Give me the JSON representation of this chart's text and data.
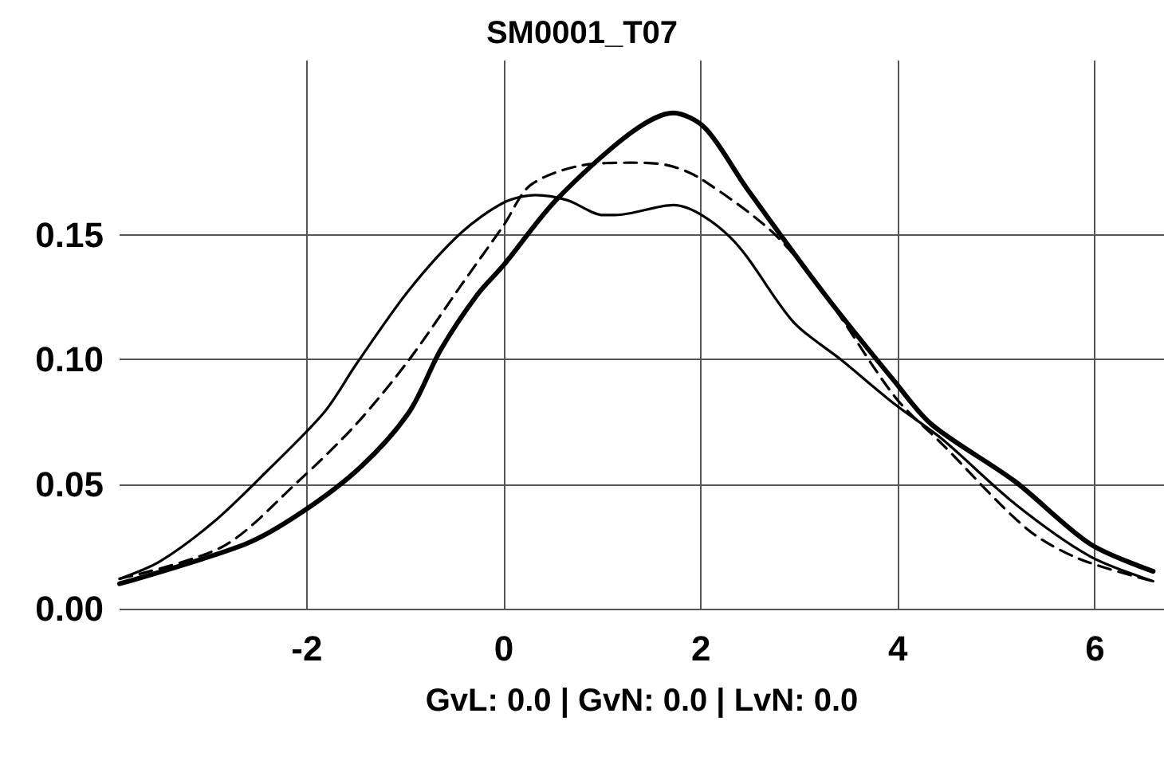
{
  "chart_data": {
    "type": "line",
    "title": "SM0001_T07",
    "xlabel": "GvL: 0.0 | GvN: 0.0 | LvN: 0.0",
    "xlim": [
      -3.9,
      6.7
    ],
    "xticks": [
      -2,
      0,
      2,
      4,
      6
    ],
    "ylim": [
      0,
      0.22
    ],
    "yticks": [
      {
        "value": 0,
        "label": "0.00"
      },
      0.05,
      {
        "value": 0.1,
        "label": "0.10"
      },
      0.15
    ],
    "grid": true,
    "marker": "none",
    "series": [
      {
        "color": "#000000",
        "line_style": "solid",
        "x": [
          -3.9,
          -3.49,
          -2.94,
          -2.41,
          -1.82,
          -1.5,
          -0.96,
          -0.43,
          0,
          0.32,
          0.64,
          1.01,
          1.13,
          1.72,
          2.3,
          2.94,
          3.42,
          3.97,
          4.45,
          5.19,
          5.95,
          6.59
        ],
        "values": [
          0.012,
          0.019,
          0.035,
          0.055,
          0.079,
          0.098,
          0.128,
          0.151,
          0.163,
          0.166,
          0.164,
          0.158,
          0.158,
          0.162,
          0.149,
          0.115,
          0.1,
          0.082,
          0.068,
          0.042,
          0.021,
          0.011
        ]
      },
      {
        "color": "#000000",
        "line_style": "dashed",
        "x": [
          -3.9,
          -2.85,
          -2.09,
          -1.5,
          -0.96,
          -0.43,
          0,
          0.27,
          0.8,
          1.29,
          1.66,
          1.98,
          2.73,
          3.26,
          3.97,
          4.45,
          5.31,
          5.84,
          6.59
        ],
        "values": [
          0.012,
          0.025,
          0.051,
          0.074,
          0.1,
          0.13,
          0.154,
          0.17,
          0.178,
          0.179,
          0.178,
          0.173,
          0.151,
          0.126,
          0.085,
          0.066,
          0.032,
          0.02,
          0.011
        ]
      },
      {
        "color": "#000000",
        "line_style": "solid",
        "x": [
          -3.9,
          -2.62,
          -2.04,
          -1.45,
          -0.96,
          -0.64,
          -0.27,
          0,
          0.53,
          1.29,
          1.72,
          2.04,
          2.46,
          3.26,
          3.97,
          4.34,
          5.19,
          5.95,
          6.59
        ],
        "values": [
          0.01,
          0.026,
          0.039,
          0.057,
          0.079,
          0.104,
          0.126,
          0.138,
          0.164,
          0.191,
          0.199,
          0.193,
          0.169,
          0.126,
          0.091,
          0.074,
          0.051,
          0.026,
          0.015
        ]
      }
    ]
  }
}
